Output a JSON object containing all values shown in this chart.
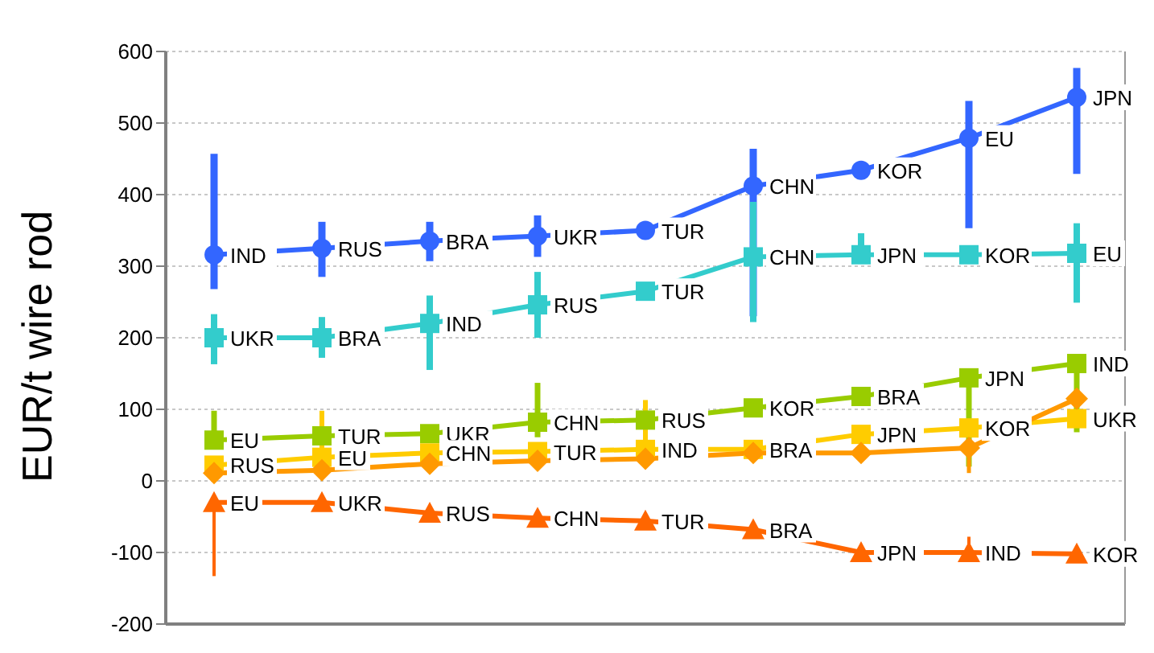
{
  "chart_data": {
    "type": "line",
    "ylabel": "EUR/t  wire rod",
    "categories": [
      null,
      null,
      null,
      null,
      null,
      null,
      null,
      null,
      null
    ],
    "ylim": [
      -200,
      600
    ],
    "yticks": [
      -200,
      -100,
      0,
      100,
      200,
      300,
      400,
      500,
      600
    ],
    "grid": "y",
    "tick_labels": "y",
    "series": [
      {
        "color": "#3366ff",
        "marker": "circle",
        "values": [
          316,
          325,
          335,
          342,
          350,
          412,
          434,
          479,
          536
        ],
        "value_labels": [
          "IND",
          "RUS",
          "BRA",
          "UKR",
          "TUR",
          "CHN",
          "KOR",
          "EU",
          "JPN"
        ],
        "errors": [
          [
            268,
            457
          ],
          [
            285,
            362
          ],
          [
            307,
            362
          ],
          [
            313,
            371
          ],
          null,
          [
            230,
            464
          ],
          null,
          [
            353,
            531
          ],
          [
            429,
            577
          ]
        ]
      },
      {
        "color": "#33cccc",
        "marker": "square",
        "values": [
          200,
          200,
          220,
          246,
          265,
          313,
          316,
          316,
          318
        ],
        "value_labels": [
          "UKR",
          "BRA",
          "IND",
          "RUS",
          "TUR",
          "CHN",
          "JPN",
          "KOR",
          "EU"
        ],
        "errors": [
          [
            163,
            233
          ],
          [
            172,
            229
          ],
          [
            155,
            259
          ],
          [
            200,
            292
          ],
          null,
          [
            222,
            390
          ],
          [
            313,
            346
          ],
          null,
          [
            249,
            360
          ]
        ]
      },
      {
        "color": "#99cc00",
        "marker": "square",
        "values": [
          57,
          63,
          66,
          82,
          85,
          102,
          118,
          144,
          164
        ],
        "value_labels": [
          "EU",
          "TUR",
          "UKR",
          "CHN",
          "RUS",
          "KOR",
          "BRA",
          "JPN",
          "IND"
        ],
        "errors": [
          [
            57,
            98
          ],
          null,
          null,
          [
            61,
            137
          ],
          null,
          null,
          null,
          [
            20,
            144
          ],
          [
            68,
            164
          ]
        ]
      },
      {
        "color": "#ffcc00",
        "marker": "square",
        "values": [
          22,
          33,
          39,
          41,
          44,
          44,
          65,
          74,
          87
        ],
        "value_labels": [
          "RUS",
          "EU",
          "CHN",
          "TUR",
          "IND",
          "BRA",
          "JPN",
          "KOR",
          "UKR"
        ],
        "errors": [
          null,
          [
            33,
            98
          ],
          null,
          null,
          [
            44,
            113
          ],
          null,
          null,
          null,
          null
        ]
      },
      {
        "color": "#ff9900",
        "marker": "diamond",
        "values": [
          11,
          15,
          24,
          28,
          31,
          39,
          39,
          46,
          115
        ],
        "errors": [
          null,
          null,
          null,
          null,
          null,
          null,
          null,
          [
            11,
            46
          ],
          null
        ]
      },
      {
        "color": "#ff6600",
        "marker": "triangle",
        "values": [
          -30,
          -30,
          -45,
          -52,
          -56,
          -68,
          -100,
          -100,
          -102
        ],
        "value_labels": [
          "EU",
          "UKR",
          "RUS",
          "CHN",
          "TUR",
          "BRA",
          "JPN",
          "IND",
          "KOR"
        ],
        "errors": [
          [
            -133,
            -30
          ],
          null,
          null,
          null,
          null,
          null,
          null,
          [
            -100,
            -78
          ],
          null
        ]
      }
    ]
  }
}
